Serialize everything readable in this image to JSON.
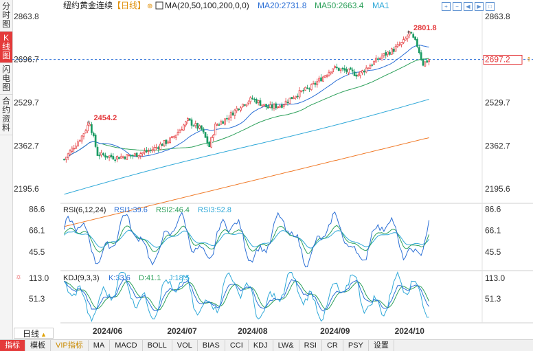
{
  "sidebar": {
    "tabs": [
      {
        "label": "分时图"
      },
      {
        "label": "K线图",
        "active": true
      },
      {
        "label": "闪电图"
      },
      {
        "label": "合约资料"
      }
    ]
  },
  "header": {
    "title": "纽约黄金连续",
    "period_tag": "【日线】",
    "ma_label": "MA(20,50,100,200,0,0)",
    "ma20": "MA20:2731.8",
    "ma50": "MA50:2663.4",
    "ma1": "MA1"
  },
  "period_selector": {
    "label": "日线"
  },
  "bottom_tabs": [
    "指标",
    "模板",
    "VIP指标",
    "MA",
    "MACD",
    "BOLL",
    "VOL",
    "BIAS",
    "CCI",
    "KDJ",
    "LW&",
    "RSI",
    "CR",
    "PSY",
    "设置"
  ],
  "colors": {
    "up": "#e4393c",
    "down": "#1a9b63",
    "ma20": "#2b6fd6",
    "ma50": "#2ca05a",
    "ma100": "#2ea8d8",
    "ma200": "#f07a28",
    "rsi1": "#2b6fd6",
    "rsi2": "#2ca05a",
    "rsi3": "#2ea8d8",
    "k": "#2b6fd6",
    "d": "#2ca05a",
    "j": "#2ea8d8"
  },
  "chart_data": [
    {
      "type": "candlestick",
      "name": "price",
      "yticks": [
        2863.8,
        2696.7,
        2529.7,
        2362.7,
        2195.6
      ],
      "ylim": [
        2140,
        2890
      ],
      "current_price": 2697.2,
      "current_line": 2696.7,
      "annotations": [
        {
          "label": "2454.2",
          "value": 2454.2
        },
        {
          "label": "2801.8",
          "value": 2801.8
        }
      ],
      "xticks": [
        "2024/06",
        "2024/07",
        "2024/08",
        "2024/09",
        "2024/10"
      ],
      "moving_averages": [
        "MA20",
        "MA50",
        "MA100",
        "MA200"
      ]
    },
    {
      "type": "line",
      "name": "RSI",
      "label": "RSI(6,12,24)",
      "legend": [
        "RSI1:39.6",
        "RSI2:46.4",
        "RSI3:52.8"
      ],
      "yticks": [
        86.6,
        66.1,
        45.5
      ],
      "ylim": [
        28,
        92
      ]
    },
    {
      "type": "line",
      "name": "KDJ",
      "label": "KDJ(9,3,3)",
      "legend": [
        "K:33.6",
        "D:41.1",
        "J:18.5"
      ],
      "yticks": [
        113.0,
        51.3
      ],
      "ylim": [
        -20,
        135
      ]
    }
  ]
}
